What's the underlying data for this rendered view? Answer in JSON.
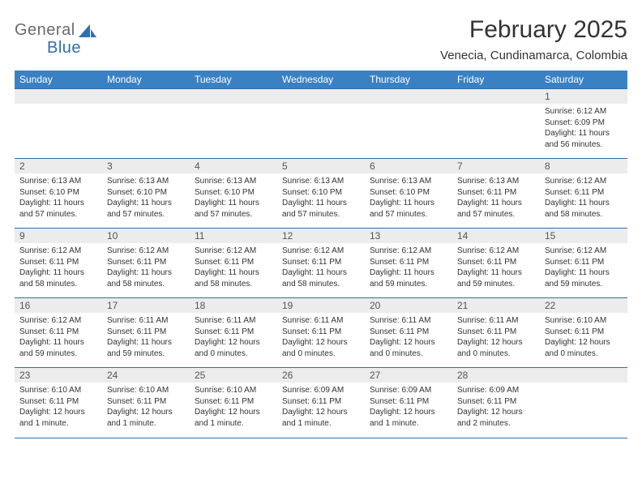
{
  "logo": {
    "text1": "General",
    "text2": "Blue",
    "shape_color": "#2f6fb0"
  },
  "title": "February 2025",
  "subtitle": "Venecia, Cundinamarca, Colombia",
  "colors": {
    "header_bg": "#3a81c4",
    "header_text": "#ffffff",
    "border": "#2f6fb0",
    "daynum_bg": "#ececec",
    "daynum_text": "#555555",
    "body_text": "#333333",
    "logo_gray": "#6b6b6b",
    "logo_blue": "#2f6fb0",
    "page_bg": "#ffffff"
  },
  "typography": {
    "title_fontsize": 30,
    "subtitle_fontsize": 15,
    "weekday_fontsize": 12,
    "daynum_fontsize": 12,
    "details_fontsize": 10,
    "font_family": "Arial"
  },
  "weekdays": [
    "Sunday",
    "Monday",
    "Tuesday",
    "Wednesday",
    "Thursday",
    "Friday",
    "Saturday"
  ],
  "weeks": [
    [
      null,
      null,
      null,
      null,
      null,
      null,
      {
        "day": "1",
        "sunrise": "Sunrise: 6:12 AM",
        "sunset": "Sunset: 6:09 PM",
        "daylight": "Daylight: 11 hours and 56 minutes."
      }
    ],
    [
      {
        "day": "2",
        "sunrise": "Sunrise: 6:13 AM",
        "sunset": "Sunset: 6:10 PM",
        "daylight": "Daylight: 11 hours and 57 minutes."
      },
      {
        "day": "3",
        "sunrise": "Sunrise: 6:13 AM",
        "sunset": "Sunset: 6:10 PM",
        "daylight": "Daylight: 11 hours and 57 minutes."
      },
      {
        "day": "4",
        "sunrise": "Sunrise: 6:13 AM",
        "sunset": "Sunset: 6:10 PM",
        "daylight": "Daylight: 11 hours and 57 minutes."
      },
      {
        "day": "5",
        "sunrise": "Sunrise: 6:13 AM",
        "sunset": "Sunset: 6:10 PM",
        "daylight": "Daylight: 11 hours and 57 minutes."
      },
      {
        "day": "6",
        "sunrise": "Sunrise: 6:13 AM",
        "sunset": "Sunset: 6:10 PM",
        "daylight": "Daylight: 11 hours and 57 minutes."
      },
      {
        "day": "7",
        "sunrise": "Sunrise: 6:13 AM",
        "sunset": "Sunset: 6:11 PM",
        "daylight": "Daylight: 11 hours and 57 minutes."
      },
      {
        "day": "8",
        "sunrise": "Sunrise: 6:12 AM",
        "sunset": "Sunset: 6:11 PM",
        "daylight": "Daylight: 11 hours and 58 minutes."
      }
    ],
    [
      {
        "day": "9",
        "sunrise": "Sunrise: 6:12 AM",
        "sunset": "Sunset: 6:11 PM",
        "daylight": "Daylight: 11 hours and 58 minutes."
      },
      {
        "day": "10",
        "sunrise": "Sunrise: 6:12 AM",
        "sunset": "Sunset: 6:11 PM",
        "daylight": "Daylight: 11 hours and 58 minutes."
      },
      {
        "day": "11",
        "sunrise": "Sunrise: 6:12 AM",
        "sunset": "Sunset: 6:11 PM",
        "daylight": "Daylight: 11 hours and 58 minutes."
      },
      {
        "day": "12",
        "sunrise": "Sunrise: 6:12 AM",
        "sunset": "Sunset: 6:11 PM",
        "daylight": "Daylight: 11 hours and 58 minutes."
      },
      {
        "day": "13",
        "sunrise": "Sunrise: 6:12 AM",
        "sunset": "Sunset: 6:11 PM",
        "daylight": "Daylight: 11 hours and 59 minutes."
      },
      {
        "day": "14",
        "sunrise": "Sunrise: 6:12 AM",
        "sunset": "Sunset: 6:11 PM",
        "daylight": "Daylight: 11 hours and 59 minutes."
      },
      {
        "day": "15",
        "sunrise": "Sunrise: 6:12 AM",
        "sunset": "Sunset: 6:11 PM",
        "daylight": "Daylight: 11 hours and 59 minutes."
      }
    ],
    [
      {
        "day": "16",
        "sunrise": "Sunrise: 6:12 AM",
        "sunset": "Sunset: 6:11 PM",
        "daylight": "Daylight: 11 hours and 59 minutes."
      },
      {
        "day": "17",
        "sunrise": "Sunrise: 6:11 AM",
        "sunset": "Sunset: 6:11 PM",
        "daylight": "Daylight: 11 hours and 59 minutes."
      },
      {
        "day": "18",
        "sunrise": "Sunrise: 6:11 AM",
        "sunset": "Sunset: 6:11 PM",
        "daylight": "Daylight: 12 hours and 0 minutes."
      },
      {
        "day": "19",
        "sunrise": "Sunrise: 6:11 AM",
        "sunset": "Sunset: 6:11 PM",
        "daylight": "Daylight: 12 hours and 0 minutes."
      },
      {
        "day": "20",
        "sunrise": "Sunrise: 6:11 AM",
        "sunset": "Sunset: 6:11 PM",
        "daylight": "Daylight: 12 hours and 0 minutes."
      },
      {
        "day": "21",
        "sunrise": "Sunrise: 6:11 AM",
        "sunset": "Sunset: 6:11 PM",
        "daylight": "Daylight: 12 hours and 0 minutes."
      },
      {
        "day": "22",
        "sunrise": "Sunrise: 6:10 AM",
        "sunset": "Sunset: 6:11 PM",
        "daylight": "Daylight: 12 hours and 0 minutes."
      }
    ],
    [
      {
        "day": "23",
        "sunrise": "Sunrise: 6:10 AM",
        "sunset": "Sunset: 6:11 PM",
        "daylight": "Daylight: 12 hours and 1 minute."
      },
      {
        "day": "24",
        "sunrise": "Sunrise: 6:10 AM",
        "sunset": "Sunset: 6:11 PM",
        "daylight": "Daylight: 12 hours and 1 minute."
      },
      {
        "day": "25",
        "sunrise": "Sunrise: 6:10 AM",
        "sunset": "Sunset: 6:11 PM",
        "daylight": "Daylight: 12 hours and 1 minute."
      },
      {
        "day": "26",
        "sunrise": "Sunrise: 6:09 AM",
        "sunset": "Sunset: 6:11 PM",
        "daylight": "Daylight: 12 hours and 1 minute."
      },
      {
        "day": "27",
        "sunrise": "Sunrise: 6:09 AM",
        "sunset": "Sunset: 6:11 PM",
        "daylight": "Daylight: 12 hours and 1 minute."
      },
      {
        "day": "28",
        "sunrise": "Sunrise: 6:09 AM",
        "sunset": "Sunset: 6:11 PM",
        "daylight": "Daylight: 12 hours and 2 minutes."
      },
      null
    ]
  ]
}
